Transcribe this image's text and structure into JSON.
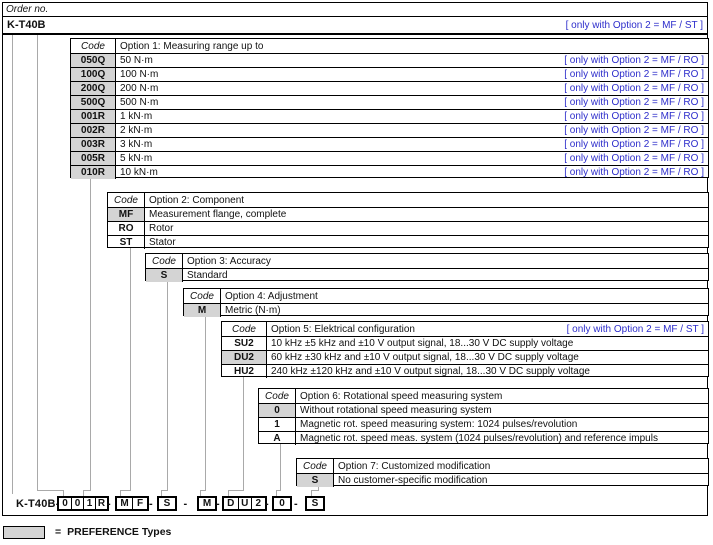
{
  "page": {
    "order_no_label": "Order no.",
    "model": "K-T40B",
    "model_annotation": "[ only with Option 2 = MF / ST ]"
  },
  "colors": {
    "annotation_blue": "#2d2dcb",
    "preference_gray": "#d4d4d4"
  },
  "options": [
    {
      "code_label": "Code",
      "title": "Option 1: Measuring range up to",
      "annotation": "",
      "rows": [
        {
          "code": "050Q",
          "description": "50 N·m",
          "preference": true,
          "annotation": "[ only with Option 2 = MF / RO ]"
        },
        {
          "code": "100Q",
          "description": "100 N·m",
          "preference": true,
          "annotation": "[ only with Option 2 = MF / RO ]"
        },
        {
          "code": "200Q",
          "description": "200 N·m",
          "preference": true,
          "annotation": "[ only with Option 2 = MF / RO ]"
        },
        {
          "code": "500Q",
          "description": "500 N·m",
          "preference": true,
          "annotation": "[ only with Option 2 = MF / RO ]"
        },
        {
          "code": "001R",
          "description": "1 kN·m",
          "preference": true,
          "annotation": "[ only with Option 2 = MF / RO ]"
        },
        {
          "code": "002R",
          "description": "2 kN·m",
          "preference": true,
          "annotation": "[ only with Option 2 = MF / RO ]"
        },
        {
          "code": "003R",
          "description": "3 kN·m",
          "preference": true,
          "annotation": "[ only with Option 2 = MF / RO ]"
        },
        {
          "code": "005R",
          "description": "5 kN·m",
          "preference": true,
          "annotation": "[ only with Option 2 = MF / RO ]"
        },
        {
          "code": "010R",
          "description": "10 kN·m",
          "preference": true,
          "annotation": "[ only with Option 2 = MF / RO ]"
        }
      ]
    },
    {
      "code_label": "Code",
      "title": "Option 2: Component",
      "annotation": "",
      "rows": [
        {
          "code": "MF",
          "description": "Measurement flange, complete",
          "preference": true,
          "annotation": ""
        },
        {
          "code": "RO",
          "description": "Rotor",
          "preference": false,
          "annotation": ""
        },
        {
          "code": "ST",
          "description": "Stator",
          "preference": false,
          "annotation": ""
        }
      ]
    },
    {
      "code_label": "Code",
      "title": "Option 3: Accuracy",
      "annotation": "",
      "rows": [
        {
          "code": "S",
          "description": "Standard",
          "preference": true,
          "annotation": ""
        }
      ]
    },
    {
      "code_label": "Code",
      "title": "Option 4: Adjustment",
      "annotation": "",
      "rows": [
        {
          "code": "M",
          "description": "Metric (N·m)",
          "preference": true,
          "annotation": ""
        }
      ]
    },
    {
      "code_label": "Code",
      "title": "Option 5: Elektrical configuration",
      "annotation": "[ only with Option 2 = MF / ST ]",
      "rows": [
        {
          "code": "SU2",
          "description": "10 kHz ±5 kHz and ±10 V output signal, 18...30 V DC supply voltage",
          "preference": false,
          "annotation": ""
        },
        {
          "code": "DU2",
          "description": "60 kHz ±30 kHz and ±10 V output signal, 18...30 V DC supply voltage",
          "preference": true,
          "annotation": ""
        },
        {
          "code": "HU2",
          "description": "240 kHz ±120 kHz and ±10 V output signal, 18...30 V DC supply voltage",
          "preference": false,
          "annotation": ""
        }
      ]
    },
    {
      "code_label": "Code",
      "title": "Option 6: Rotational speed measuring system",
      "annotation": "",
      "rows": [
        {
          "code": "0",
          "description": "Without rotational speed measuring system",
          "preference": true,
          "annotation": ""
        },
        {
          "code": "1",
          "description": "Magnetic rot. speed measuring system: 1024 pulses/revolution",
          "preference": false,
          "annotation": ""
        },
        {
          "code": "A",
          "description": "Magnetic rot. speed meas. system (1024 pulses/revolution) and reference impuls",
          "preference": false,
          "annotation": ""
        }
      ]
    },
    {
      "code_label": "Code",
      "title": "Option 7: Customized modification",
      "annotation": "",
      "rows": [
        {
          "code": "S",
          "description": "No customer-specific modification",
          "preference": true,
          "annotation": ""
        }
      ]
    }
  ],
  "order_code": {
    "prefix": "K-T40B-",
    "separator": "-",
    "groups": [
      [
        "0",
        "0",
        "1",
        "R"
      ],
      [
        "M",
        "F"
      ],
      [
        "S"
      ],
      [
        "M"
      ],
      [
        "D",
        "U",
        "2"
      ],
      [
        "0"
      ],
      [
        "S"
      ]
    ]
  },
  "legend": {
    "equals": "=",
    "label": "PREFERENCE Types"
  }
}
